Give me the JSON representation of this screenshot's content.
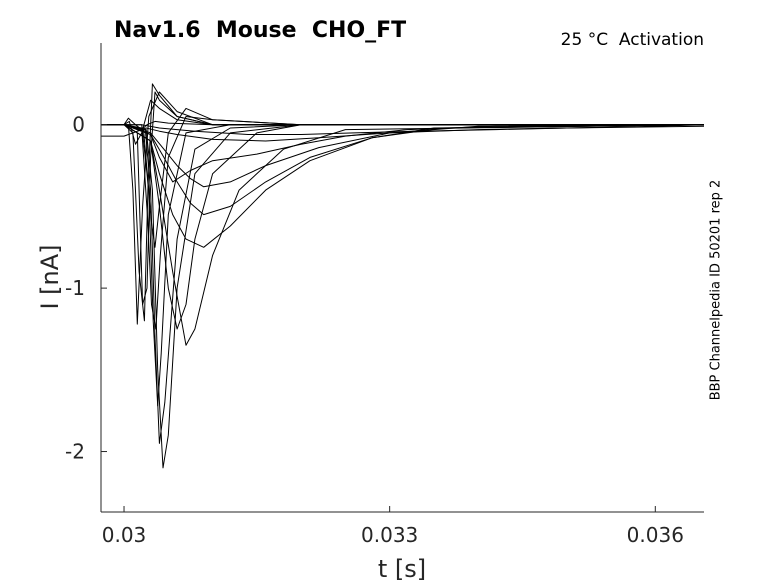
{
  "chart_data": {
    "type": "line",
    "title": "Nav1.6  Mouse  CHO_FT",
    "subtitle": "25 °C  Activation",
    "side_note": "BBP Channelpedia ID 50201 rep 2",
    "xlabel": "t [s]",
    "ylabel": "I [nA]",
    "xlim": [
      0.02974,
      0.03655
    ],
    "ylim": [
      -2.37,
      0.5
    ],
    "xticks": [
      0.03,
      0.033,
      0.036
    ],
    "xtick_labels": [
      "0.03",
      "0.033",
      "0.036"
    ],
    "yticks": [
      0,
      -1,
      -2
    ],
    "ytick_labels": [
      "0",
      "-1",
      "-2"
    ],
    "grid": false,
    "line_color": "#000000",
    "series": [
      {
        "x": [
          0.0297,
          0.03,
          0.03005,
          0.03013,
          0.0302,
          0.03026,
          0.03035,
          0.0305,
          0.031,
          0.032,
          0.033,
          0.0345,
          0.0366
        ],
        "y": [
          0.0,
          0.0,
          0.04,
          0.0,
          -0.03,
          0.0,
          0.02,
          0.01,
          0.0,
          0.0,
          0.0,
          0.0,
          0.0
        ]
      },
      {
        "x": [
          0.0297,
          0.03,
          0.03006,
          0.03013,
          0.0302,
          0.0303,
          0.0304,
          0.0306,
          0.031,
          0.032,
          0.0335,
          0.0366
        ],
        "y": [
          0.0,
          0.0,
          0.02,
          -0.12,
          -0.05,
          0.15,
          0.1,
          0.03,
          0.0,
          0.0,
          0.0,
          0.0
        ]
      },
      {
        "x": [
          0.0297,
          0.03,
          0.03005,
          0.0301,
          0.03015,
          0.03021,
          0.03028,
          0.0304,
          0.0306,
          0.031,
          0.032,
          0.0366
        ],
        "y": [
          0.0,
          0.0,
          0.0,
          -0.4,
          -1.22,
          -0.5,
          0.05,
          0.2,
          0.08,
          0.0,
          0.0,
          0.0
        ]
      },
      {
        "x": [
          0.0297,
          0.03,
          0.0301,
          0.03017,
          0.03023,
          0.03027,
          0.03032,
          0.0304,
          0.0306,
          0.031,
          0.032,
          0.0366
        ],
        "y": [
          0.0,
          0.0,
          -0.05,
          -0.9,
          -1.2,
          -0.4,
          0.25,
          0.18,
          0.05,
          0.0,
          0.0,
          0.0
        ]
      },
      {
        "x": [
          0.0297,
          0.03,
          0.03015,
          0.03021,
          0.03026,
          0.0303,
          0.03035,
          0.0304,
          0.0306,
          0.031,
          0.032,
          0.0366
        ],
        "y": [
          0.0,
          0.0,
          -0.05,
          -1.1,
          -1.0,
          -0.2,
          0.2,
          0.15,
          0.05,
          0.0,
          0.0,
          0.0
        ]
      },
      {
        "x": [
          0.0297,
          0.03,
          0.0302,
          0.03026,
          0.03031,
          0.03035,
          0.0304,
          0.0305,
          0.0307,
          0.031,
          0.032,
          0.0366
        ],
        "y": [
          0.0,
          0.0,
          0.0,
          -0.3,
          -0.6,
          -0.75,
          -0.5,
          -0.05,
          0.1,
          0.03,
          0.0,
          0.0
        ]
      },
      {
        "x": [
          0.0297,
          0.03,
          0.0302,
          0.03027,
          0.03031,
          0.03036,
          0.03041,
          0.0305,
          0.0307,
          0.031,
          0.032,
          0.0366
        ],
        "y": [
          0.0,
          0.0,
          -0.02,
          -0.6,
          -1.1,
          -1.25,
          -0.8,
          -0.2,
          0.05,
          0.03,
          0.0,
          0.0
        ]
      },
      {
        "x": [
          0.0297,
          0.03,
          0.03022,
          0.03028,
          0.03033,
          0.03038,
          0.03042,
          0.0305,
          0.0307,
          0.0312,
          0.032,
          0.0366
        ],
        "y": [
          0.0,
          0.0,
          -0.03,
          -0.4,
          -1.2,
          -1.72,
          -1.4,
          -0.55,
          -0.05,
          0.0,
          0.0,
          0.0
        ]
      },
      {
        "x": [
          0.0297,
          0.03,
          0.03024,
          0.0303,
          0.03035,
          0.0304,
          0.03046,
          0.0306,
          0.0308,
          0.0312,
          0.032,
          0.0366
        ],
        "y": [
          0.0,
          0.0,
          -0.03,
          -0.4,
          -1.3,
          -1.95,
          -1.7,
          -0.7,
          -0.15,
          -0.02,
          0.0,
          0.0
        ]
      },
      {
        "x": [
          0.0297,
          0.03,
          0.03025,
          0.03032,
          0.03038,
          0.03044,
          0.0305,
          0.0306,
          0.0308,
          0.0312,
          0.032,
          0.0366
        ],
        "y": [
          0.0,
          0.0,
          -0.03,
          -0.4,
          -1.5,
          -2.1,
          -1.9,
          -1.0,
          -0.3,
          -0.05,
          0.0,
          0.0
        ]
      },
      {
        "x": [
          0.0297,
          0.03,
          0.0303,
          0.0304,
          0.0305,
          0.0306,
          0.0307,
          0.0308,
          0.031,
          0.0315,
          0.032,
          0.0366
        ],
        "y": [
          0.0,
          0.0,
          -0.1,
          -0.5,
          -1.0,
          -1.25,
          -1.1,
          -0.7,
          -0.3,
          -0.05,
          0.0,
          0.0
        ]
      },
      {
        "x": [
          0.0297,
          0.03,
          0.0303,
          0.0304,
          0.03055,
          0.0307,
          0.0308,
          0.031,
          0.0313,
          0.0318,
          0.0325,
          0.0366
        ],
        "y": [
          0.0,
          0.0,
          -0.1,
          -0.4,
          -0.9,
          -1.35,
          -1.25,
          -0.8,
          -0.4,
          -0.15,
          -0.03,
          0.0
        ]
      },
      {
        "x": [
          0.0297,
          0.03,
          0.0303,
          0.0304,
          0.03055,
          0.0307,
          0.0309,
          0.0312,
          0.0316,
          0.0321,
          0.0328,
          0.0335,
          0.0366
        ],
        "y": [
          0.0,
          0.0,
          -0.1,
          -0.3,
          -0.55,
          -0.7,
          -0.75,
          -0.62,
          -0.4,
          -0.22,
          -0.08,
          -0.02,
          0.0
        ]
      },
      {
        "x": [
          0.0297,
          0.03,
          0.0303,
          0.03045,
          0.0306,
          0.03075,
          0.0309,
          0.0312,
          0.0316,
          0.0321,
          0.0328,
          0.0336,
          0.0366
        ],
        "y": [
          0.0,
          0.0,
          -0.06,
          -0.2,
          -0.35,
          -0.48,
          -0.55,
          -0.5,
          -0.35,
          -0.2,
          -0.08,
          -0.02,
          0.0
        ]
      },
      {
        "x": [
          0.0297,
          0.03,
          0.0303,
          0.03045,
          0.0306,
          0.03075,
          0.0309,
          0.0312,
          0.0316,
          0.0322,
          0.033,
          0.034,
          0.0366
        ],
        "y": [
          0.0,
          0.0,
          -0.05,
          -0.15,
          -0.25,
          -0.33,
          -0.38,
          -0.35,
          -0.25,
          -0.14,
          -0.05,
          -0.01,
          0.0
        ]
      },
      {
        "x": [
          0.0297,
          0.03,
          0.0303,
          0.0304,
          0.03055,
          0.03075,
          0.031,
          0.0315,
          0.032,
          0.0325,
          0.0332,
          0.0342,
          0.0366
        ],
        "y": [
          0.0,
          0.0,
          -0.06,
          -0.2,
          -0.35,
          -0.28,
          -0.22,
          -0.18,
          -0.12,
          -0.07,
          -0.03,
          -0.01,
          0.0
        ]
      },
      {
        "x": [
          0.0297,
          0.03,
          0.0301,
          0.03025,
          0.0304,
          0.0306,
          0.031,
          0.0316,
          0.0322,
          0.033,
          0.034,
          0.035,
          0.0366
        ],
        "y": [
          -0.07,
          -0.07,
          -0.05,
          -0.02,
          -0.04,
          -0.06,
          -0.09,
          -0.1,
          -0.08,
          -0.05,
          -0.03,
          -0.02,
          -0.01
        ]
      },
      {
        "x": [
          0.0297,
          0.0302,
          0.0304,
          0.0308,
          0.0314,
          0.032,
          0.0326,
          0.0333,
          0.0342,
          0.035,
          0.036,
          0.0366
        ],
        "y": [
          0.0,
          0.0,
          -0.02,
          -0.04,
          -0.06,
          -0.06,
          -0.05,
          -0.04,
          -0.03,
          -0.02,
          -0.01,
          0.0
        ]
      }
    ]
  }
}
